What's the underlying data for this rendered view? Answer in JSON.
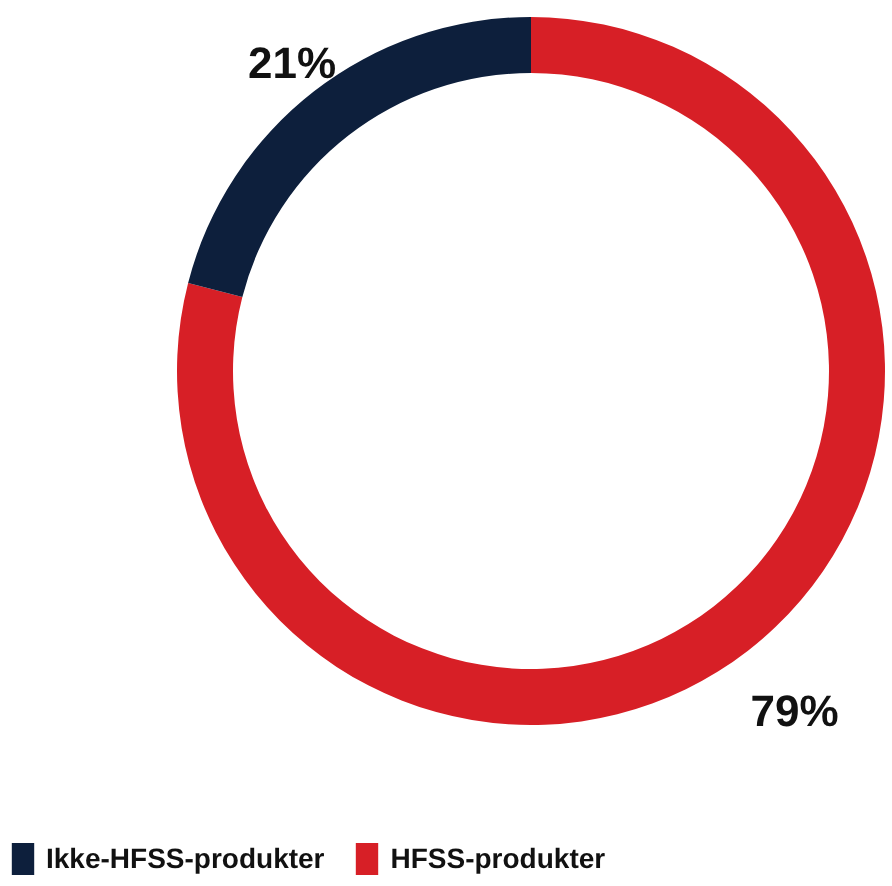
{
  "chart_data": {
    "type": "donut",
    "categories": [
      "Ikke-HFSS-produkter",
      "HFSS-produkter"
    ],
    "values": [
      21,
      79
    ],
    "colors": [
      "#0d1f3c",
      "#d71f26"
    ],
    "value_labels": [
      "21%",
      "79%"
    ],
    "legend": "bottom"
  }
}
